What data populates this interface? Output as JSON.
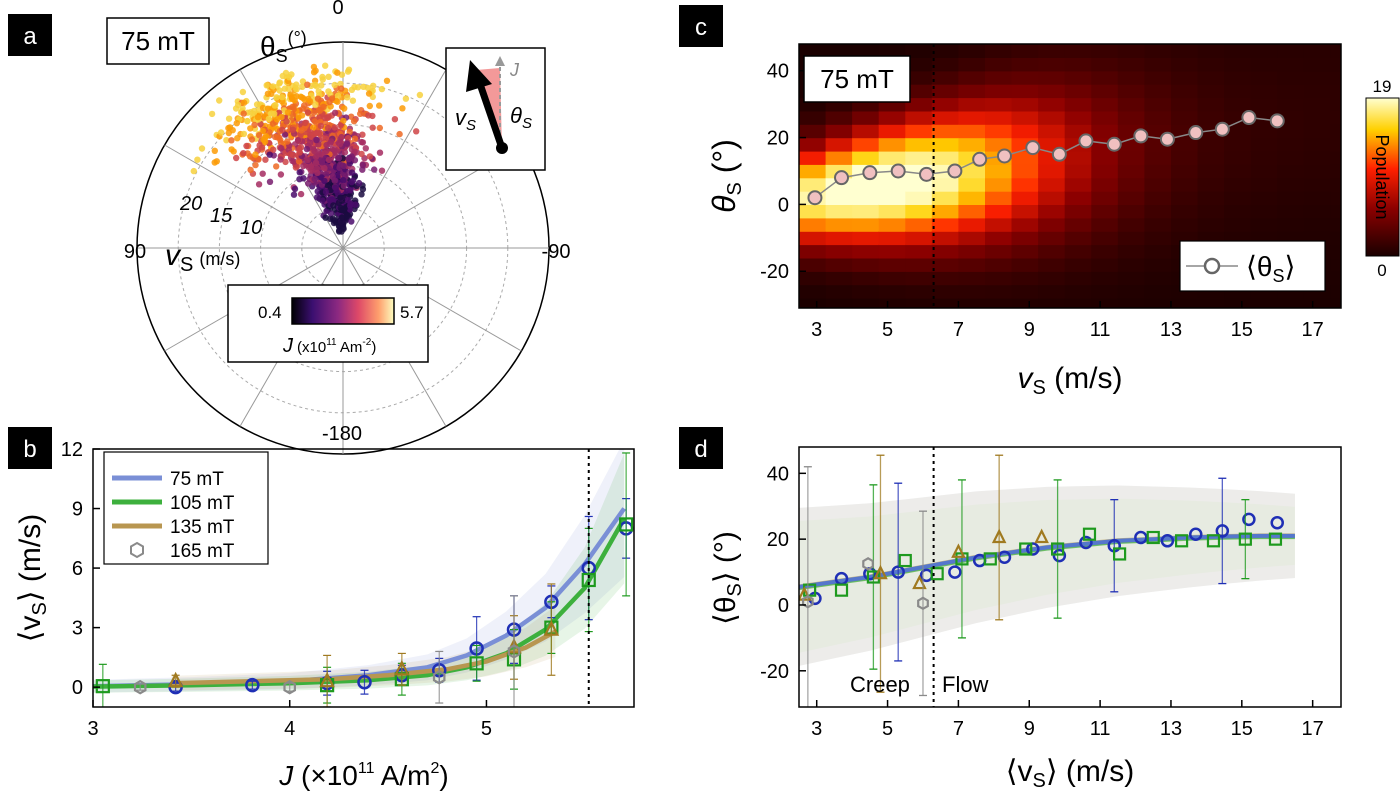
{
  "panels": {
    "a": {
      "label": "a",
      "field": "75 mT",
      "angle_title": "θ",
      "angle_sub": "S",
      "angle_unit": "(°)",
      "angle_ticks": [
        "0",
        "90",
        "-90",
        "-180"
      ],
      "radial_ticks": [
        "20",
        "15",
        "10"
      ],
      "radial_title": "v",
      "radial_sub": "S",
      "radial_unit": "(m/s)",
      "colorbar": {
        "min": "0.4",
        "max": "5.7",
        "label": "J",
        "unit": "(x10",
        "unit_exp": "11",
        "unit_rest": " Am",
        "unit_exp2": "-2",
        "unit_close": ")"
      },
      "inset": {
        "j": "J",
        "v": "v",
        "v_sub": "S",
        "theta": "θ",
        "theta_sub": "S"
      },
      "colors": [
        "#1b0c41",
        "#4a0c6b",
        "#781c6d",
        "#a52c60",
        "#cf4446",
        "#ed6925",
        "#fb9b06",
        "#f7d13d"
      ]
    },
    "b": {
      "label": "b",
      "xlabel": "J",
      "xunit": " (×10",
      "xexp": "11",
      "xunit2": " A/m",
      "xexp2": "2",
      "xclose": ")",
      "ylabel": "⟨v",
      "ysub": "S",
      "yclose": "⟩ (m/s)",
      "xticks": [
        "3",
        "4",
        "5"
      ],
      "yticks": [
        "0",
        "3",
        "6",
        "9",
        "12"
      ],
      "legend": [
        "75 mT",
        "105 mT",
        "135 mT",
        "165 mT"
      ]
    },
    "c": {
      "label": "c",
      "field": "75 mT",
      "xlabel": "v",
      "xsub": "S",
      "xunit": " (m/s)",
      "ylabel": "θ",
      "ysub": "S",
      "yunit": " (°)",
      "xticks": [
        "3",
        "5",
        "7",
        "9",
        "11",
        "13",
        "15",
        "17"
      ],
      "yticks": [
        "40",
        "20",
        "0",
        "-20"
      ],
      "colorbar": {
        "max": "19",
        "min": "0",
        "label": "Population"
      },
      "legend": {
        "pre": "⟨θ",
        "sub": "S",
        "post": "⟩"
      }
    },
    "d": {
      "label": "d",
      "xlabel": "⟨v",
      "xsub": "S",
      "xclose": "⟩ (m/s)",
      "ylabel": "⟨θ",
      "ysub": "S",
      "yclose": "⟩ (°)",
      "xticks": [
        "3",
        "5",
        "7",
        "9",
        "11",
        "13",
        "15",
        "17"
      ],
      "yticks": [
        "40",
        "20",
        "0",
        "-20"
      ],
      "creep": "Creep",
      "flow": "Flow",
      "creep_color": "#1a7a1a",
      "flow_color": "#8b1a1a"
    }
  },
  "chart_data": [
    {
      "panel": "a",
      "type": "scatter",
      "coords": "polar",
      "title": "75 mT",
      "theta_deg_ticks": [
        0,
        90,
        -90,
        -180
      ],
      "r_ticks": [
        10,
        15,
        20
      ],
      "colorbar_range": [
        0.4,
        5.7
      ],
      "cluster_center": {
        "theta_deg": 0,
        "r": 9
      },
      "cluster_high_J_center": {
        "theta_deg": 20,
        "r": 15
      }
    },
    {
      "panel": "b",
      "type": "line",
      "xlabel": "J (×10^11 A/m^2)",
      "ylabel": "⟨v_S⟩ (m/s)",
      "xlim": [
        3,
        5.75
      ],
      "ylim": [
        -1,
        12
      ],
      "dotted_vline_x": 5.52,
      "series": [
        {
          "name": "75 mT",
          "color": "#7a8fd6",
          "style": "fit",
          "x": [
            3.0,
            3.5,
            4.0,
            4.4,
            4.7,
            4.9,
            5.1,
            5.3,
            5.5,
            5.7
          ],
          "y": [
            0.05,
            0.15,
            0.3,
            0.6,
            1.0,
            1.6,
            2.6,
            4.0,
            6.2,
            9.0
          ]
        },
        {
          "name": "105 mT",
          "color": "#3db03d",
          "style": "fit",
          "x": [
            3.0,
            3.5,
            4.0,
            4.4,
            4.7,
            4.9,
            5.1,
            5.3,
            5.5,
            5.7
          ],
          "y": [
            0.03,
            0.1,
            0.2,
            0.35,
            0.6,
            1.0,
            1.7,
            2.9,
            5.0,
            8.5
          ]
        },
        {
          "name": "135 mT",
          "color": "#b89650",
          "style": "fit",
          "x": [
            3.4,
            3.8,
            4.2,
            4.5,
            4.8,
            5.0,
            5.2,
            5.35
          ],
          "y": [
            0.2,
            0.3,
            0.4,
            0.6,
            0.9,
            1.3,
            2.0,
            2.8
          ]
        },
        {
          "name": "75 mT data",
          "color": "#1f2fb5",
          "marker": "circle",
          "x": [
            3.42,
            3.81,
            4.19,
            4.38,
            4.57,
            4.76,
            4.95,
            5.14,
            5.33,
            5.52,
            5.71
          ],
          "y": [
            0.0,
            0.1,
            0.2,
            0.25,
            0.6,
            0.85,
            1.95,
            2.9,
            4.3,
            6.0,
            8.0
          ],
          "err": [
            0.2,
            0.2,
            0.6,
            0.6,
            0.5,
            0.6,
            1.6,
            1.7,
            0.8,
            2.6,
            1.5
          ]
        },
        {
          "name": "105 mT data",
          "color": "#1e9a1e",
          "marker": "square",
          "x": [
            3.05,
            4.19,
            4.57,
            4.95,
            5.14,
            5.33,
            5.52,
            5.71
          ],
          "y": [
            0.05,
            0.1,
            0.4,
            1.2,
            1.4,
            3.0,
            5.4,
            8.2
          ],
          "err": [
            1.1,
            0.9,
            0.8,
            0.9,
            1.5,
            1.3,
            2.6,
            3.6
          ]
        },
        {
          "name": "135 mT data",
          "color": "#a07a20",
          "marker": "triangle",
          "x": [
            3.42,
            4.19,
            4.57,
            5.14,
            5.33
          ],
          "y": [
            0.3,
            0.3,
            0.9,
            2.0,
            2.9
          ],
          "err": [
            0.3,
            1.3,
            0.8,
            1.6,
            2.3
          ]
        },
        {
          "name": "165 mT",
          "color": "#8a8a8a",
          "marker": "hexagon",
          "x": [
            3.24,
            4.0,
            4.76,
            5.14
          ],
          "y": [
            0.0,
            0.0,
            0.5,
            1.8
          ],
          "err": [
            0.15,
            0.2,
            1.3,
            2.8
          ]
        }
      ]
    },
    {
      "panel": "c",
      "type": "heatmap",
      "title": "75 mT",
      "xlabel": "v_S (m/s)",
      "ylabel": "θ_S (°)",
      "xlim": [
        2.5,
        17.8
      ],
      "ylim": [
        -31,
        48
      ],
      "colorbar_range": [
        0,
        19
      ],
      "dotted_vline_x": 6.3,
      "mean_theta": {
        "x": [
          2.95,
          3.7,
          4.5,
          5.3,
          6.1,
          6.9,
          7.6,
          8.3,
          9.1,
          9.85,
          10.6,
          11.4,
          12.15,
          12.9,
          13.7,
          14.45,
          15.2,
          16.0
        ],
        "y": [
          2.0,
          8.0,
          9.5,
          10.0,
          9.0,
          10.0,
          13.5,
          14.5,
          17.0,
          15.0,
          19.0,
          18.0,
          20.5,
          19.5,
          21.5,
          22.5,
          26.0,
          25.0
        ]
      }
    },
    {
      "panel": "d",
      "type": "scatter",
      "xlabel": "⟨v_S⟩ (m/s)",
      "ylabel": "⟨θ_S⟩ (°)",
      "xlim": [
        2.5,
        17.8
      ],
      "ylim": [
        -31,
        48
      ],
      "dotted_vline_x": 6.3,
      "series": [
        {
          "name": "75 mT",
          "color": "#1f2fb5",
          "marker": "circle",
          "x": [
            2.95,
            3.7,
            4.5,
            5.3,
            6.1,
            6.9,
            7.6,
            8.3,
            9.1,
            9.85,
            10.6,
            11.4,
            12.15,
            12.9,
            13.7,
            14.45,
            15.2,
            16.0
          ],
          "y": [
            2.0,
            8.0,
            9.5,
            10.0,
            9.0,
            10.0,
            13.5,
            14.5,
            17.0,
            15.0,
            19.0,
            18.0,
            20.5,
            19.5,
            21.5,
            22.5,
            26.0,
            25.0
          ],
          "err": [
            0,
            0,
            0,
            27,
            0,
            0,
            0,
            0,
            0,
            0,
            0,
            14,
            0,
            0,
            0,
            16,
            0,
            0
          ]
        },
        {
          "name": "105 mT",
          "color": "#1e9a1e",
          "marker": "square",
          "x": [
            2.8,
            3.7,
            4.6,
            5.5,
            6.4,
            7.1,
            7.9,
            8.9,
            9.8,
            10.7,
            11.55,
            12.5,
            13.3,
            14.2,
            15.1,
            15.95
          ],
          "y": [
            4.5,
            4.5,
            8.5,
            13.5,
            9.5,
            14.0,
            14.0,
            17.0,
            17.0,
            21.5,
            15.5,
            20.5,
            19.5,
            19.5,
            20.0,
            20.0
          ],
          "err": [
            0,
            0,
            28,
            0,
            0,
            24,
            0,
            0,
            21,
            0,
            0,
            0,
            0,
            0,
            12,
            0
          ]
        },
        {
          "name": "135 mT",
          "color": "#a07a20",
          "marker": "triangle",
          "x": [
            2.65,
            4.8,
            5.9,
            7.0,
            8.15,
            9.35
          ],
          "y": [
            3.0,
            9.5,
            6.5,
            16.0,
            20.5,
            20.5
          ],
          "err": [
            0,
            36,
            0,
            0,
            25,
            0
          ]
        },
        {
          "name": "165 mT",
          "color": "#8a8a8a",
          "marker": "hexagon",
          "x": [
            2.75,
            4.45,
            6.0
          ],
          "y": [
            1.0,
            12.5,
            0.5
          ],
          "err": [
            41,
            0,
            28
          ]
        },
        {
          "name": "fit",
          "color": "#5577cc",
          "style": "fit",
          "x": [
            2.5,
            3.5,
            4.5,
            5.5,
            6.5,
            7.5,
            8.5,
            9.5,
            10.5,
            11.5,
            12.5,
            13.5,
            14.5,
            15.5,
            16.5
          ],
          "y": [
            5.5,
            7.0,
            8.5,
            10.5,
            12.5,
            14.5,
            16.0,
            17.5,
            18.5,
            19.5,
            20.0,
            20.5,
            20.8,
            21.0,
            21.0
          ]
        }
      ]
    }
  ]
}
